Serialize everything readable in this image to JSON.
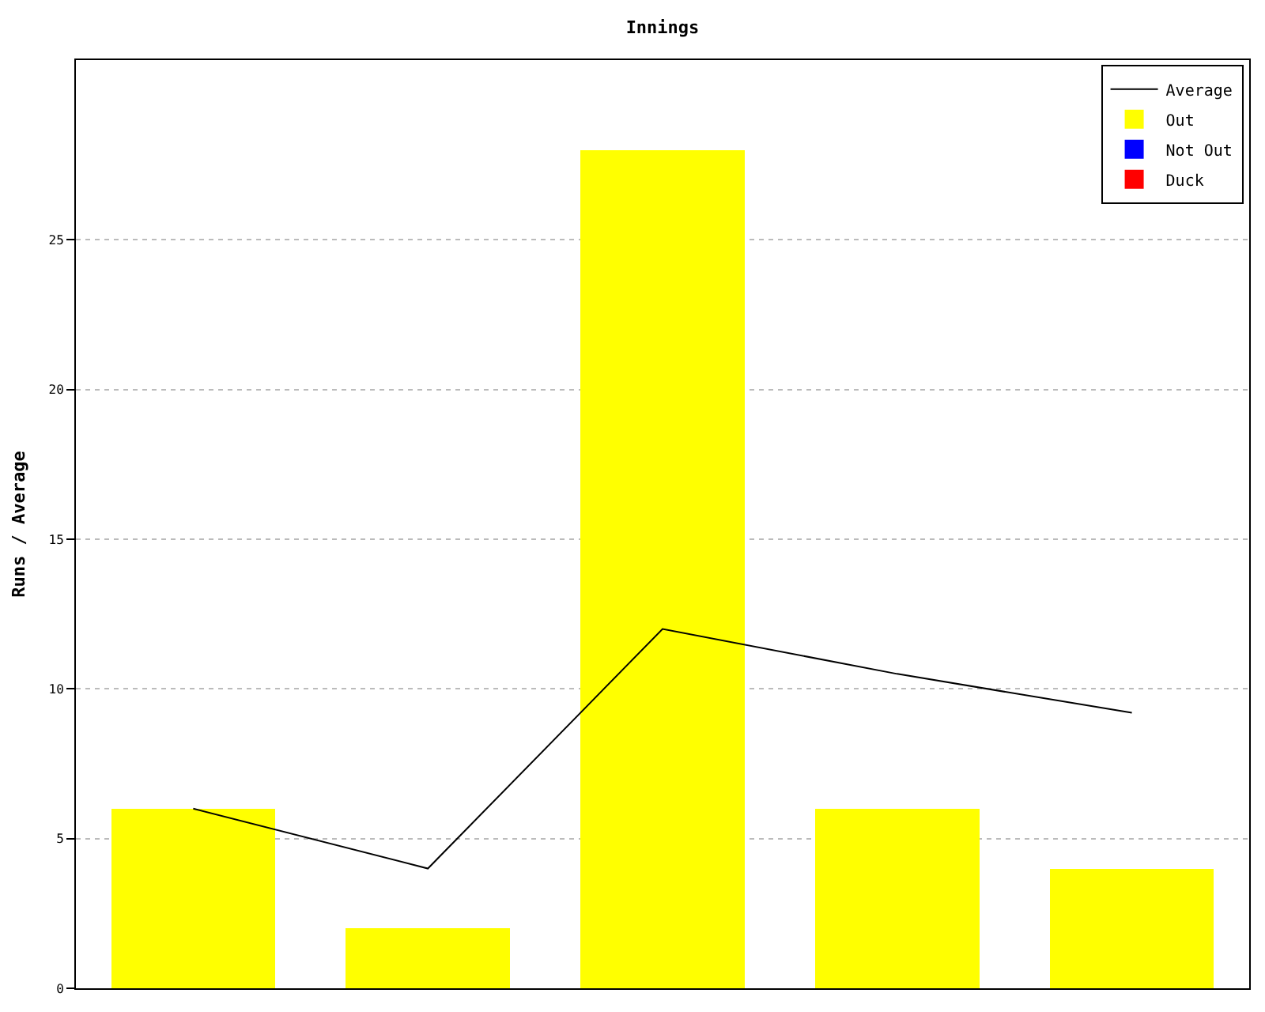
{
  "chart_data": {
    "type": "bar",
    "title": "Innings",
    "ylabel": "Runs / Average",
    "categories": [
      null,
      null,
      null,
      null,
      null
    ],
    "stacked": true,
    "series": [
      {
        "name": "Average",
        "type": "line",
        "color": "#000000",
        "values": [
          6,
          4,
          12,
          10.5,
          9.2
        ]
      },
      {
        "name": "Out",
        "color": "#ffff00",
        "values": [
          6,
          2,
          28,
          6,
          4
        ]
      },
      {
        "name": "Not Out",
        "color": "#0000ff",
        "values": [
          null,
          null,
          null,
          null,
          null
        ]
      },
      {
        "name": "Duck",
        "color": "#ff0000",
        "values": [
          null,
          null,
          null,
          null,
          null
        ]
      }
    ],
    "ylim": [
      0,
      31
    ],
    "yticks": [
      0,
      5,
      10,
      15,
      20,
      25
    ],
    "grid": "y",
    "legend": "top right",
    "tick_labels": "y",
    "marker": "none"
  }
}
